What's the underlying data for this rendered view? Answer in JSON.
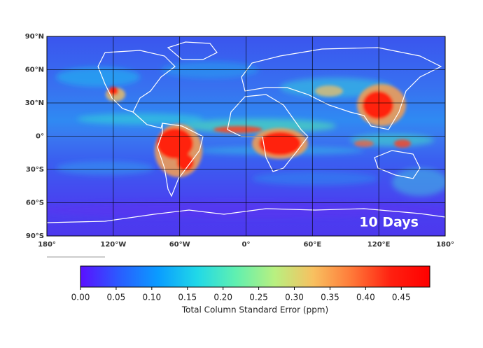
{
  "map": {
    "annotation": "10 Days",
    "xlim": [
      -180,
      180
    ],
    "ylim": [
      -90,
      90
    ],
    "xticks": [
      {
        "value": -180,
        "label": "180°"
      },
      {
        "value": -120,
        "label": "120°W"
      },
      {
        "value": -60,
        "label": "60°W"
      },
      {
        "value": 0,
        "label": "0°"
      },
      {
        "value": 60,
        "label": "60°E"
      },
      {
        "value": 120,
        "label": "120°E"
      },
      {
        "value": 180,
        "label": "180°"
      }
    ],
    "yticks": [
      {
        "value": 90,
        "label": "90°N"
      },
      {
        "value": 60,
        "label": "60°N"
      },
      {
        "value": 30,
        "label": "30°N"
      },
      {
        "value": 0,
        "label": "0°"
      },
      {
        "value": -30,
        "label": "30°S"
      },
      {
        "value": -60,
        "label": "60°S"
      },
      {
        "value": -90,
        "label": "90°S"
      }
    ]
  },
  "colorbar": {
    "label": "Total Column Standard Error (ppm)",
    "lim": [
      0,
      0.49
    ],
    "ticks": [
      {
        "value": 0,
        "label": "0.00"
      },
      0.05,
      {
        "value": 0.1,
        "label": "0.10"
      },
      0.15,
      {
        "value": 0.2,
        "label": "0.20"
      },
      0.25,
      {
        "value": 0.3,
        "label": "0.30"
      },
      0.35,
      {
        "value": 0.4,
        "label": "0.40"
      },
      0.45
    ],
    "colors": [
      "#5a10ff",
      "#2a5cff",
      "#0a9cff",
      "#20d8e8",
      "#60f0b0",
      "#b8f080",
      "#f8c060",
      "#ff7838",
      "#ff2010",
      "#ff0000"
    ]
  }
}
